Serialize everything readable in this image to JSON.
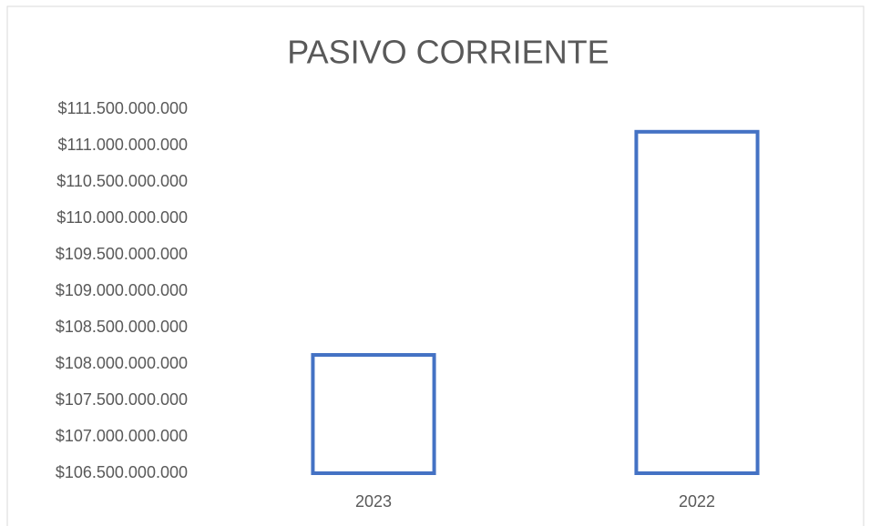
{
  "chart_data": {
    "type": "bar",
    "title": "PASIVO CORRIENTE",
    "categories": [
      "2023",
      "2022"
    ],
    "values": [
      108125000000,
      111190000000
    ],
    "color": "#4472c4",
    "ylim": [
      106500000000,
      111500000000
    ],
    "yticks": [
      {
        "value": 106500000000,
        "label": "$106.500.000.000"
      },
      {
        "value": 107000000000,
        "label": "$107.000.000.000"
      },
      {
        "value": 107500000000,
        "label": "$107.500.000.000"
      },
      {
        "value": 108000000000,
        "label": "$108.000.000.000"
      },
      {
        "value": 108500000000,
        "label": "$108.500.000.000"
      },
      {
        "value": 109000000000,
        "label": "$109.000.000.000"
      },
      {
        "value": 109500000000,
        "label": "$109.500.000.000"
      },
      {
        "value": 110000000000,
        "label": "$110.000.000.000"
      },
      {
        "value": 110500000000,
        "label": "$110.500.000.000"
      },
      {
        "value": 111000000000,
        "label": "$111.000.000.000"
      },
      {
        "value": 111500000000,
        "label": "$111.500.000.000"
      }
    ],
    "grid": false
  }
}
